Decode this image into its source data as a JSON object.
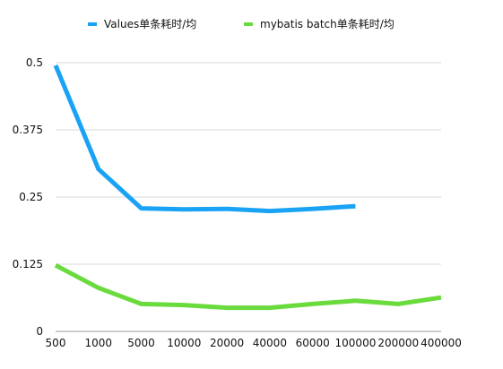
{
  "chart_data": {
    "type": "line",
    "title": "",
    "xlabel": "",
    "ylabel": "",
    "categories": [
      "500",
      "1000",
      "5000",
      "10000",
      "20000",
      "40000",
      "60000",
      "100000",
      "200000",
      "400000"
    ],
    "ylim": [
      0,
      0.5
    ],
    "yticks": [
      0,
      0.125,
      0.25,
      0.375,
      0.5
    ],
    "ytick_labels": [
      "0",
      "0.125",
      "0.25",
      "0.375",
      "0.5"
    ],
    "grid": "horizontal",
    "legend_position": "top",
    "series": [
      {
        "name": "Values单条耗时/均",
        "color": "#1aa3f5",
        "values": [
          0.495,
          0.302,
          0.229,
          0.227,
          0.228,
          0.224,
          0.228,
          0.233,
          null,
          null
        ]
      },
      {
        "name": "mybatis batch单条耗时/均",
        "color": "#6adb3c",
        "values": [
          0.123,
          0.081,
          0.051,
          0.049,
          0.044,
          0.044,
          0.051,
          0.057,
          0.051,
          0.063
        ]
      }
    ]
  }
}
